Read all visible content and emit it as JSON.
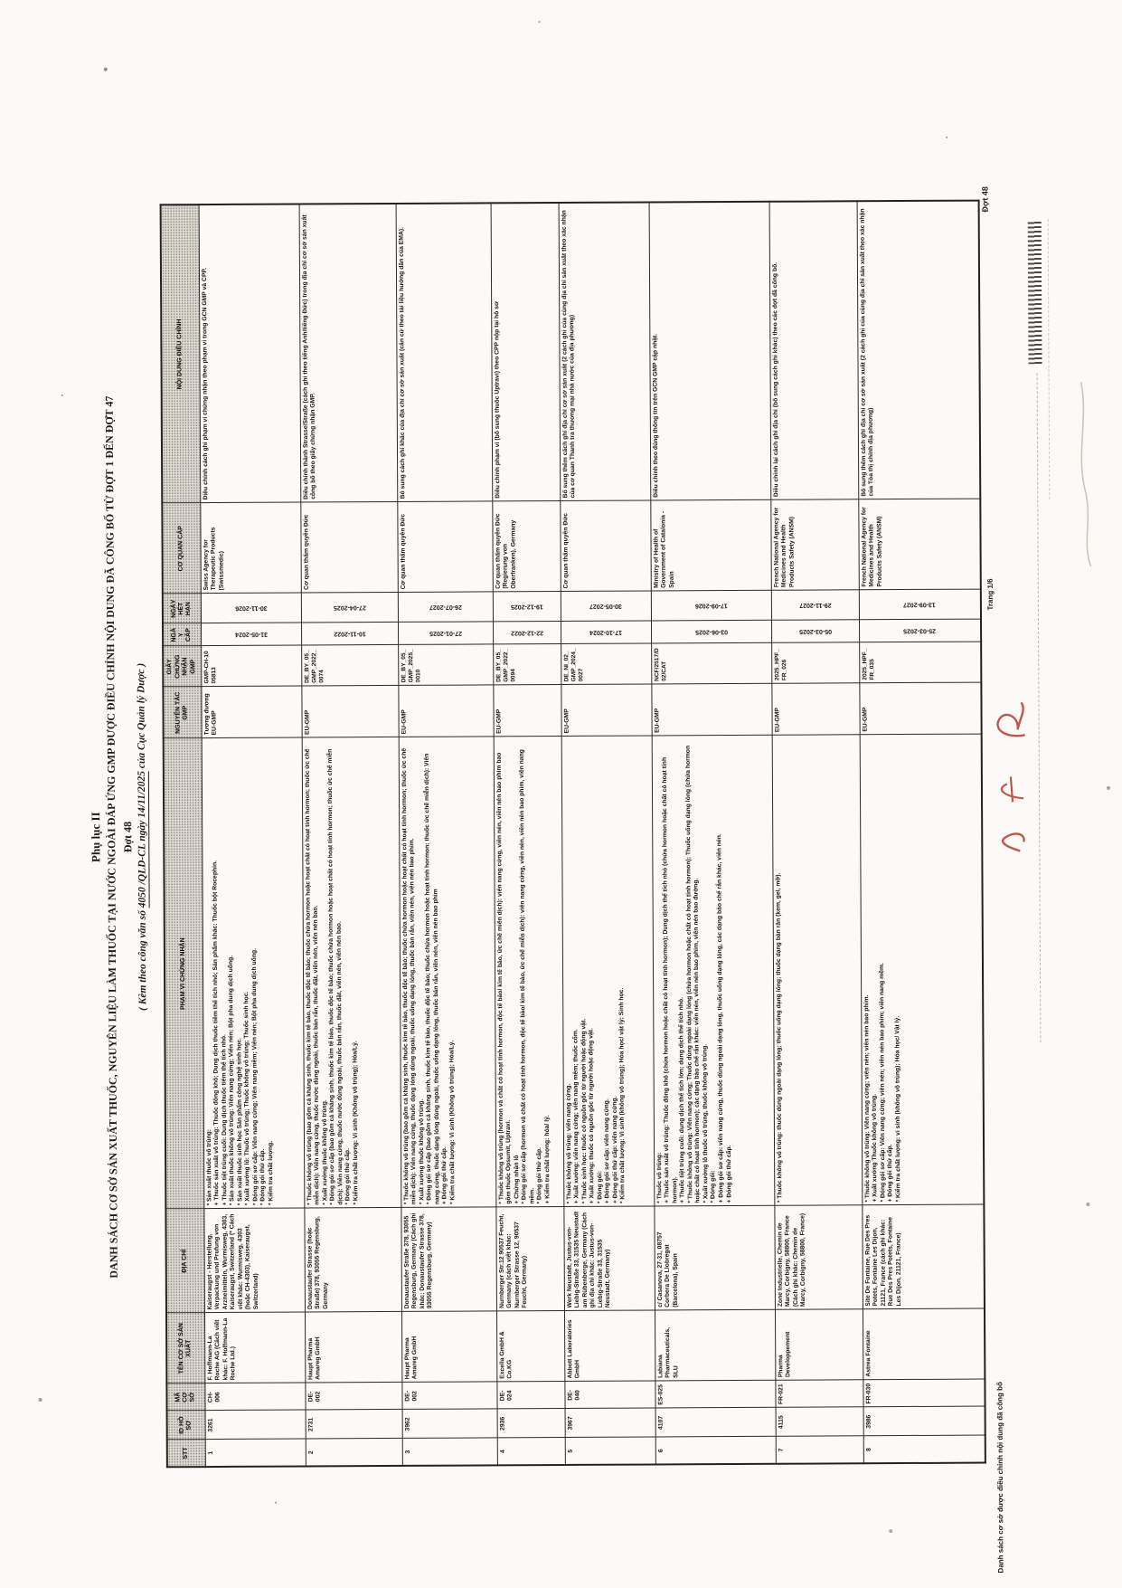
{
  "colors": {
    "ink": "#1d1c1a",
    "paper": "#fbfaf7",
    "red_mark": "#b43a2e"
  },
  "page": {
    "title1": "Phụ lục II",
    "title2": "DANH SÁCH CƠ SỞ SẢN XUẤT THUỐC, NGUYÊN LIỆU LÀM THUỐC TẠI NƯỚC NGOÀI ĐÁP ỨNG GMP ĐƯỢC ĐIỀU CHỈNH NỘI DUNG ĐÃ CÔNG BỐ TỪ ĐỢT 1 ĐẾN ĐỢT 47",
    "title3": "Đợt 48",
    "subtitle_prefix": "( Kèm theo công văn số ",
    "subtitle_underline": "4050 /QLD-CL ngày 14/11/2025",
    "subtitle_suffix": " của Cục Quản lý Dược )",
    "footer_left": "Danh sách cơ sở được điều chỉnh nội dung đã công bố",
    "page_number": "Trang 1/6",
    "corner_stamp": "Đợt 48"
  },
  "table": {
    "headers": {
      "stt": "STT",
      "id": "ID HỒ SƠ",
      "ma": "MÃ CƠ SỞ",
      "ten": "TÊN CƠ SỞ SẢN XUẤT",
      "diachi": "ĐỊA CHỈ",
      "phamvi": "PHẠM VI CHỨNG NHẬN",
      "nguyentac": "NGUYÊN TẮC GMP",
      "gcn": "GIẤY CHỨNG NHẬN GMP",
      "ngay_cap": "NGÀY CẤP",
      "ngay_het_han": "NGÀY HẾT HẠN",
      "co_quan": "CƠ QUAN CẤP",
      "noi_dung": "NỘI DUNG ĐIỀU CHỈNH"
    },
    "rows": [
      {
        "stt": "1",
        "id": "3261",
        "ma": "CH-006",
        "ten": "F. Hoffmann-La Roche AG (Cách viết khác: F. Hoffmann-La Roche Ltd.)",
        "diachi": "Kaiseraugst - Herstellung, Verpackung und Prufung von Arzneimitteln, Wurmisweg, 4303, Kaiseraugst, Switzerland (* Cách viết khác: Wurmisweg, 4303 (hoặc CH-4303), Kaiseraugst, Switzerland)",
        "phamvi": [
          "* Sản xuất thuốc vô trùng:",
          "+ Thuốc sản xuất vô trùng: Thuốc đông khô; Dung dịch thuốc tiêm thể tích nhỏ; Sản phẩm khác: Thuốc bột Rocephin.",
          "+ Thuốc tiệt trùng cuối: Dung dịch thuốc tiêm thể tích nhỏ.",
          "* Sản xuất thuốc không vô trùng: Viên nang cứng; Viên nén; Bột pha dung dịch uống.",
          "* Sản xuất thuốc sinh học Sản phẩm công nghệ sinh học.",
          "* Xuất xưởng lô: Thuốc vô trùng; Thuốc không vô trùng; Thuốc sinh học.",
          "* Đóng gói sơ cấp: Viên nang cứng; Viên nang mềm; Viên nén; Bột pha dung dịch uống.",
          "* Đóng gói thứ cấp.",
          "* Kiểm tra chất lượng."
        ],
        "nguyentac": "Tương đương EU-GMP",
        "gcn": "GMP-CH-1005813",
        "ngay_cap": "31-05-2024",
        "ngay_het_han": "30-11-2026",
        "co_quan": "Swiss Agency for Therapeutic Products (Swissmedic)",
        "noi_dung": "Điều chỉnh cách ghi phạm vi chứng nhận theo phạm vi trong GCN GMP và CPP."
      },
      {
        "stt": "2",
        "id": "2731",
        "ma": "DE-002",
        "ten": "Haupt Pharma Amareg GmbH",
        "diachi": "Donaustaufer Strasse (hoặc Straße) 378, 93055 Regensburg, Germany",
        "phamvi": [
          "* Thuốc không vô trùng (bao gồm cả kháng sinh, thuốc kìm tế bào, thuốc độc tế bào; thuốc chứa hormon hoặc hoạt chất có hoạt tính hormon; thuốc ức chế miễn dịch): Viên nang cứng, thuốc nước dùng ngoài, thuốc bán rắn, thuốc đặt, viên nén, viên nén bao.",
          "* Xuất xưởng thuốc không vô trùng.",
          "* Đóng gói sơ cấp (bao gồm cả kháng sinh, thuốc kìm tế bào, thuốc độc tế bào; thuốc chứa hormon hoặc hoạt chất có hoạt tính hormon; thuốc ức chế miễn dịch): Viên nang cứng, thuốc nước dùng ngoài, thuốc bán rắn, thuốc đặt, viên nén, viên nén bao.",
          "* Đóng gói thứ cấp.",
          "* Kiểm tra chất lượng: Vi sinh (Không vô trùng); Hóa/Lý."
        ],
        "nguyentac": "EU-GMP",
        "gcn": "DE_BY_05_GMP_2022_0074",
        "ngay_cap": "10-11-2022",
        "ngay_het_han": "27-04-2025",
        "co_quan": "Cơ quan thẩm quyền Đức",
        "noi_dung": "Điều chỉnh thành Strasse/Straße (cách ghi theo tiếng Anh/tiếng Đức) trong địa chỉ cơ sở sản xuất công bố theo giấy chứng nhận GMP."
      },
      {
        "stt": "3",
        "id": "3962",
        "ma": "DE-002",
        "ten": "Haupt Pharma Amareg GmbH",
        "diachi": "Donaustaufer Straße 378, 93055 Regensburg, Germany (Cách ghi khác: Donaustaufer Strasse 378, 93055 Regensburg, Germany)",
        "phamvi": [
          "* Thuốc không vô trùng (bao gồm cả kháng sinh, thuốc kìm tế bào, thuốc độc tế bào; thuốc chứa hormon hoặc hoạt chất có hoạt tính hormon; thuốc ức chế miễn dịch): Viên nang cứng, thuốc dạng lỏng dùng ngoài, thuốc uống dạng lỏng, thuốc bán rắn, viên nén, viên nén bao phim.",
          "* Xuất xưởng thuốc không vô trùng.",
          "* Đóng gói sơ cấp (bao gồm cả kháng sinh, thuốc kìm tế bào, thuốc độc tế bào; thuốc chứa hormon hoặc hoạt tính hormon; thuốc ức chế miễn dịch): Viên nang cứng, thuốc dạng lỏng dùng ngoài, thuốc uống dạng lỏng, thuốc bán rắn, viên nén, viên nén bao phim",
          "+ Đóng gói thứ cấp.",
          "* Kiểm tra chất lượng: Vi sinh (Không vô trùng); Hóa/Lý."
        ],
        "nguyentac": "EU-GMP",
        "gcn": "DE_BY_05_GMP_2025_0010",
        "ngay_cap": "27-01-2025",
        "ngay_het_han": "26-07-2027",
        "co_quan": "Cơ quan thẩm quyền Đức",
        "noi_dung": "Bổ sung cách ghi khác của địa chỉ cơ sở sản xuất (căn cứ theo tài liệu hướng dẫn của EMA)."
      },
      {
        "stt": "4",
        "id": "2936",
        "ma": "DE-024",
        "ten": "Excella GmbH & Co.KG",
        "diachi": "Nurnberger Str.12 90537 Feucht, Germany (cách viết khác: Nurnberger Strasse 12, 90537 Feucht, Germany)",
        "phamvi": [
          "* Thuốc không vô trùng (hormon và chất có hoạt tính hormon, độc tế bào/ kìm tế bào, ức chế miễn dịch): viên nang cứng, viên nén, viên nén bao phim bao gồm thuốc Opsumit, Uptravi.",
          "+ Chứng nhận lô",
          "* Đóng gói sơ cấp (hormon và chất có hoạt tính hormon, độc tế bào/ kìm tế bào, ức chế miễn dịch): viên nang cứng, viên nén, viên nén bao phim, viên nang mềm.",
          "* Đóng gói thứ cấp.",
          "+ Kiểm tra chất lượng: hóa/ lý."
        ],
        "nguyentac": "EU-GMP",
        "gcn": "DE_BY_05_GMP_2022_0094",
        "ngay_cap": "22-12-2022",
        "ngay_het_han": "19-12-2025",
        "co_quan": "Cơ quan thẩm quyền Đức (Regierung von Oberfranken), Germany",
        "noi_dung": "Điều chỉnh phạm vi (bổ sung thuốc Uptravi) theo CPP nộp tại hồ sơ"
      },
      {
        "stt": "5",
        "id": "3967",
        "ma": "DE-040",
        "ten": "Abbott Laboratories GmbH",
        "diachi": "Werk Neustadt, Justus-von-Liebig-Straße 33, 31535 Neustadt am Rübenberge, Germany (Cách ghi địa chỉ khác: Justus-von-Liebig-Straße 33, 31535 Neustadt, Germany)",
        "phamvi": [
          "* Thuốc không vô trùng: viên nang cứng.",
          "+ Xuất xưởng: viên nang cứng; viên nang mềm; thuốc cốm.",
          "* Thuốc sinh học: thuốc có nguồn gốc từ người hoặc động vật.",
          "+ Xuất xưởng: thuốc có nguồn gốc từ người hoặc động vật.",
          "* Đóng gói:",
          "+ Đóng gói sơ cấp: viên nang cứng.",
          "+ Đóng gói thứ cấp: viên nang cứng.",
          "* Kiểm tra chất lượng: Vi sinh (không vô trùng); Hóa học/ vật lý; Sinh học."
        ],
        "nguyentac": "EU-GMP",
        "gcn": "DE_NI_02_GMP_2024_0027",
        "ngay_cap": "17-10-2024",
        "ngay_het_han": "30-05-2027",
        "co_quan": "Cơ quan thẩm quyền Đức",
        "noi_dung": "Bổ sung thêm cách ghi địa chỉ cơ sở sản xuất (2 cách ghi của cùng địa chỉ sản xuất theo xác nhận của cơ quan Thanh tra thương mại nhà nước của địa phương)"
      },
      {
        "stt": "6",
        "id": "4107",
        "ma": "ES-025",
        "ten": "Labiana Pharmaceuticals, SLU",
        "diachi": "c/ Casanova, 27-31, 08757 Corbera De Llobregat (Barcelona), Spain",
        "phamvi": [
          "* Thuốc vô trùng:",
          "+ Thuốc sản xuất vô trùng: Thuốc đông khô (chứa hormon hoặc chất có hoạt tính hormon); Dung dịch thể tích nhỏ (chứa hormon hoặc chất có hoạt tính hormon).",
          "+ Thuốc tiệt trùng cuối: dung dịch thể tích lớn; dung dịch thể tích nhỏ.",
          "* Thuốc không vô trùng: Viên nang cứng; Thuốc dùng ngoài dạng lỏng (chứa hormon hoặc chất có hoạt tính hormon); Thuốc uống dạng lỏng (chứa hormon hoặc chất có hoạt tính hormon); các dạng bào chế rắn khác: viên nén, viên nén bao phim, viên nén bao đường.",
          "* Xuất xưởng lô thuốc vô trùng, thuốc không vô trùng.",
          "* Đóng gói:",
          "+ Đóng gói sơ cấp: viên nang cứng, thuốc dùng ngoài dạng lỏng, thuốc uống dạng lỏng, các dạng bào chế rắn khác, viên nén.",
          "+ Đóng gói thứ cấp."
        ],
        "nguyentac": "EU-GMP",
        "gcn": "NCF/2517/D02/CAT",
        "ngay_cap": "03-06-2025",
        "ngay_het_han": "17-09-2026",
        "co_quan": "Ministry of Health of Government of Catalonia - Spain",
        "noi_dung": "Điều chỉnh theo đúng thông tin trên GCN GMP cập nhật."
      },
      {
        "stt": "7",
        "id": "4115",
        "ma": "FR-021",
        "ten": "Pharma Developpement",
        "diachi": "Zone Industrielle, Chemin de Marcy, Corbigny, 58800, France (Cách ghi khác: Chemin de Marcy, Corbigny, 58800, France)",
        "phamvi": [
          "* Thuốc không vô trùng: thuốc dùng ngoài dạng lỏng; thuốc uống dạng lỏng; thuốc dạng bán rắn (kem, gel, mỡ)."
        ],
        "nguyentac": "EU-GMP",
        "gcn": "2025_HPF_FR_026",
        "ngay_cap": "05-03-2025",
        "ngay_het_han": "29-11-2027",
        "co_quan": "French National Agency for Medicines and Health Products Safety (ANSM)",
        "noi_dung": "Điều chỉnh lại cách ghi địa chỉ (bổ sung cách ghi khác) theo các đợt đã công bố."
      },
      {
        "stt": "8",
        "id": "3986",
        "ma": "FR-030",
        "ten": "Astrea Fontaine",
        "diachi": "Site De Fontaine, Rue Des Pres Potets, Fontaine Les Dijon, 21121, France (cách ghi khác: Rue Des Pres Potets, Fontaine Les Dijon, 21121, France)",
        "phamvi": [
          "* Thuốc không vô trùng: Viên nang cứng; viên nén; viên nén bao phim.",
          "+ Xuất xưởng Thuốc không vô trùng.",
          "* Đóng gói sơ cấp: Viên nang cứng; viên nén; viên nén bao phim; viên nang mềm.",
          "+ Đóng gói thứ cấp.",
          "* Kiểm tra chất lượng: vi sinh (không vô trùng); Hóa học/ Vật lý."
        ],
        "nguyentac": "EU-GMP",
        "gcn": "2025_HPF_FR_035",
        "ngay_cap": "25-03-2025",
        "ngay_het_han": "13-09-2027",
        "co_quan": "French National Agency for Medicines and Health Products Safety (ANSM)",
        "noi_dung": "Bổ sung thêm cách ghi địa chỉ cơ sở sản xuất (2 cách ghi của cùng địa chỉ sản xuất theo xác nhận của Tòa thị chính địa phương)"
      }
    ]
  }
}
